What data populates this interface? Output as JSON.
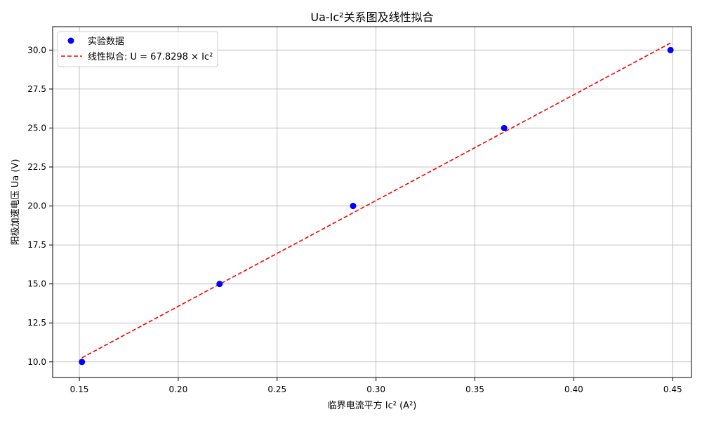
{
  "chart_data": {
    "type": "scatter",
    "title": "Ua-Ic²关系图及线性拟合",
    "xlabel": "临界电流平方 Ic² (A²)",
    "ylabel": "阳极加速电压 Ua (V)",
    "xlim": [
      0.1365,
      0.4595
    ],
    "ylim": [
      9.0,
      31.5
    ],
    "xticks": [
      0.15,
      0.2,
      0.25,
      0.3,
      0.35,
      0.4,
      0.45
    ],
    "xtick_labels": [
      "0.15",
      "0.20",
      "0.25",
      "0.30",
      "0.35",
      "0.40",
      "0.45"
    ],
    "yticks": [
      10.0,
      12.5,
      15.0,
      17.5,
      20.0,
      22.5,
      25.0,
      27.5,
      30.0
    ],
    "ytick_labels": [
      "10.0",
      "12.5",
      "15.0",
      "17.5",
      "20.0",
      "22.5",
      "25.0",
      "27.5",
      "30.0"
    ],
    "grid": true,
    "legend_position": "top-left",
    "series": [
      {
        "name": "实验数据",
        "kind": "scatter",
        "color": "#0000ff",
        "x": [
          0.1513,
          0.2209,
          0.2884,
          0.3648,
          0.4489
        ],
        "y": [
          10,
          15,
          20,
          25,
          30
        ]
      },
      {
        "name": "线性拟合: U = 67.8298 × Ic²",
        "kind": "line",
        "style": "dashed",
        "color": "#ff0000",
        "slope": 67.8298,
        "x": [
          0.1513,
          0.4489
        ]
      }
    ]
  }
}
